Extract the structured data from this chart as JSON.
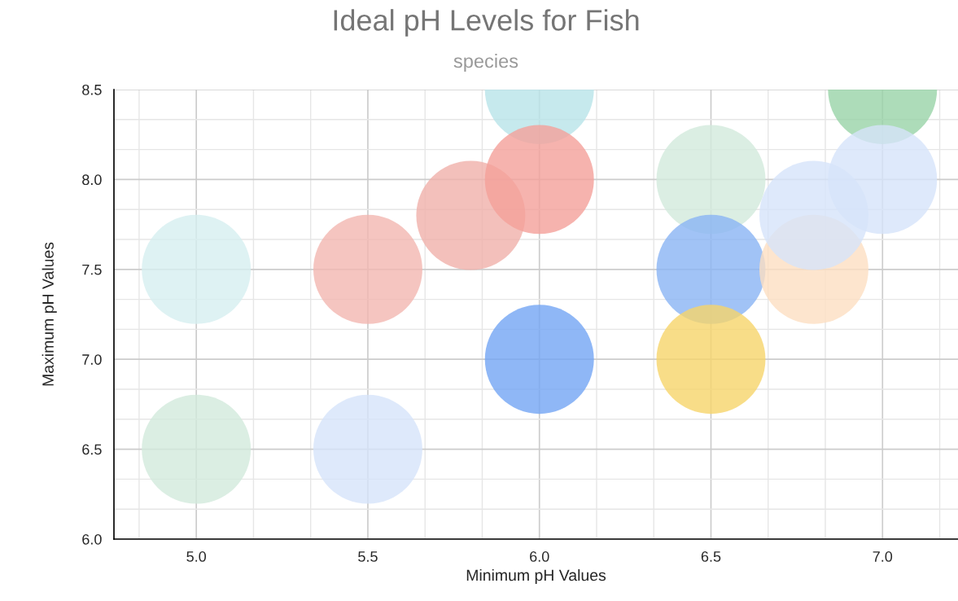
{
  "chart_data": {
    "type": "scatter",
    "title": "Ideal pH Levels for Fish",
    "subtitle": "species",
    "xlabel": "Minimum pH Values",
    "ylabel": "Maximum pH Values",
    "x": [
      5.0,
      5.0,
      5.5,
      5.5,
      5.8,
      6.0,
      6.0,
      6.0,
      6.5,
      6.5,
      6.5,
      7.0,
      7.0,
      6.8,
      6.8
    ],
    "values": [
      7.5,
      6.5,
      7.5,
      6.5,
      7.8,
      8.5,
      8.0,
      7.0,
      8.0,
      7.5,
      7.0,
      8.5,
      8.0,
      7.5,
      7.8
    ],
    "colors": [
      "#d6eff0",
      "#d2eadc",
      "#f2b6b0",
      "#d6e4fa",
      "#f0b0aa",
      "#b8e4e9",
      "#f4a09a",
      "#73a5f4",
      "#d2eadc",
      "#8ab4f4",
      "#f6d56a",
      "#98d3a8",
      "#d6e4fa",
      "#fddfc2",
      "#d6e4fa"
    ],
    "marker": "circle",
    "xlim": [
      4.76,
      7.22
    ],
    "ylim": [
      6.0,
      8.5
    ],
    "xticks": [
      {
        "value": 5.0,
        "label": "5.0"
      },
      {
        "value": 5.5,
        "label": "5.5"
      },
      {
        "value": 6.0,
        "label": "6.0"
      },
      {
        "value": 6.5,
        "label": "6.5"
      },
      {
        "value": 7.0,
        "label": "7.0"
      }
    ],
    "yticks": [
      {
        "value": 6.0,
        "label": "6.0"
      },
      {
        "value": 6.5,
        "label": "6.5"
      },
      {
        "value": 7.0,
        "label": "7.0"
      },
      {
        "value": 7.5,
        "label": "7.5"
      },
      {
        "value": 8.0,
        "label": "8.0"
      },
      {
        "value": 8.5,
        "label": "8.5"
      }
    ],
    "grid": true
  }
}
